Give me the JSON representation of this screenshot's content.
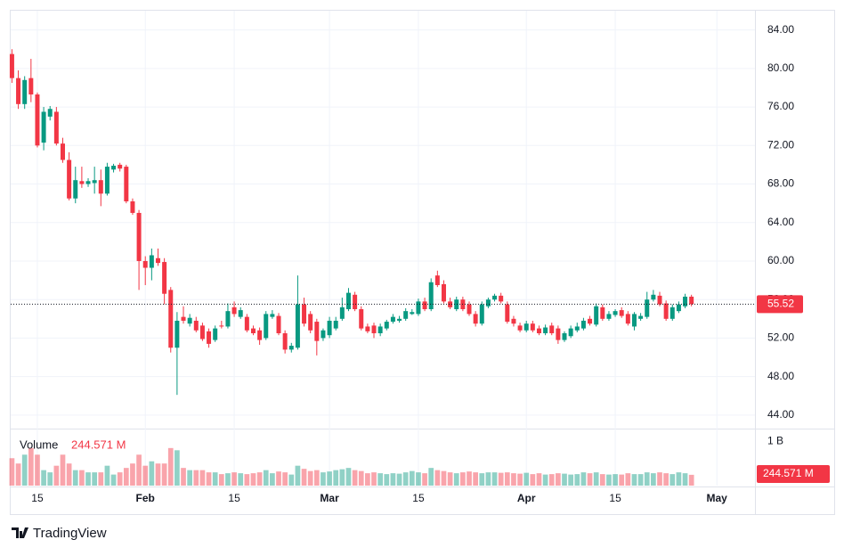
{
  "chart_data": {
    "type": "candlestick",
    "xlim": [
      -0.2,
      117
    ],
    "xticks": [
      {
        "value": 4,
        "label": "15"
      },
      {
        "value": 21,
        "label": "Feb"
      },
      {
        "value": 35,
        "label": "15"
      },
      {
        "value": 50,
        "label": "Mar"
      },
      {
        "value": 64,
        "label": "15"
      },
      {
        "value": 81,
        "label": "Apr"
      },
      {
        "value": 95,
        "label": "15"
      },
      {
        "value": 111,
        "label": "May"
      }
    ],
    "ylim": [
      42.6,
      86
    ],
    "yticks": [
      {
        "value": 44,
        "label": "44.00"
      },
      {
        "value": 48,
        "label": "48.00"
      },
      {
        "value": 52,
        "label": "52.00"
      },
      {
        "value": 56,
        "label": "56.00"
      },
      {
        "value": 60,
        "label": "60.00"
      },
      {
        "value": 64,
        "label": "64.00"
      },
      {
        "value": 68,
        "label": "68.00"
      },
      {
        "value": 72,
        "label": "72.00"
      },
      {
        "value": 76,
        "label": "76.00"
      },
      {
        "value": 80,
        "label": "80.00"
      },
      {
        "value": 84,
        "label": "84.00"
      }
    ],
    "up_color": "#089981",
    "down_color": "#f23645",
    "open": [
      81.5,
      79,
      76.3,
      79,
      77.3,
      72.3,
      75,
      75.5,
      72.2,
      70.5,
      66.5,
      68.3,
      68,
      68.1,
      68.4,
      67,
      69.5,
      70,
      69.8,
      66.2,
      65,
      60,
      59.3,
      60.3,
      59.9,
      57,
      51,
      54.2,
      53.5,
      53.8,
      53.3,
      52.7,
      51.8,
      53.3,
      53.2,
      55.2,
      54.2,
      54.2,
      53,
      52.8,
      52,
      54.2,
      54.3,
      52.5,
      50.8,
      51,
      55.5,
      54.5,
      53.7,
      52,
      52.3,
      53,
      54,
      55,
      56.5,
      55,
      53.2,
      53.3,
      52.5,
      53,
      53.7,
      53.8,
      54,
      54.5,
      54.5,
      55.8,
      55,
      58.5,
      57.6,
      55.8,
      55,
      56,
      55.5,
      54.5,
      53.5,
      55.3,
      56,
      56.4,
      55.5,
      54,
      53.3,
      52.8,
      53.5,
      53,
      52.5,
      53.3,
      53,
      51.8,
      52.2,
      52.8,
      53,
      54,
      53.4,
      55.2,
      54,
      54.4,
      54.9,
      54.5,
      53.2,
      54,
      54.2,
      56,
      56.4,
      55.6,
      54,
      54.8,
      55.3,
      56.3
    ],
    "high": [
      82,
      79.8,
      79.2,
      81,
      77.5,
      76,
      76.1,
      76,
      72.8,
      71.3,
      69.8,
      69.8,
      68.6,
      69.8,
      69.5,
      70.2,
      70.1,
      70.2,
      70,
      66.5,
      65.3,
      60.5,
      61.3,
      61.3,
      60.3,
      57.3,
      54.7,
      55.3,
      54.5,
      54.2,
      53.6,
      53,
      53.3,
      53.8,
      55.6,
      55.8,
      55.2,
      54.5,
      53.3,
      53.1,
      54.8,
      54.9,
      54.6,
      52.8,
      51.5,
      58.5,
      56.2,
      54.8,
      54,
      53,
      54.2,
      54.2,
      56.2,
      57.2,
      56.8,
      55.3,
      53.5,
      53.6,
      53.5,
      53.9,
      54.5,
      54.3,
      55.1,
      55,
      56.1,
      56.2,
      58.2,
      59,
      58,
      56.2,
      56.3,
      56.3,
      55.8,
      54.8,
      55.8,
      56.2,
      56.6,
      56.7,
      55.8,
      54.3,
      53.6,
      53.8,
      53.8,
      53.3,
      53.4,
      53.6,
      53.3,
      52.7,
      53.3,
      53.6,
      54.1,
      54.3,
      55.6,
      55.5,
      54.8,
      55,
      55.2,
      54.8,
      54.7,
      54.6,
      56.8,
      57,
      56.8,
      55.9,
      55.5,
      55.8,
      56.6,
      56.5
    ],
    "low": [
      78.5,
      75.8,
      75.8,
      76.5,
      71.8,
      71.5,
      74.6,
      72,
      70.2,
      66.3,
      66,
      67.6,
      67.7,
      67,
      65.7,
      66.8,
      69.2,
      69.3,
      66,
      64.8,
      57,
      57.5,
      58,
      59.5,
      55.5,
      50.5,
      46.1,
      53.5,
      53.2,
      52.6,
      51.7,
      51,
      51.6,
      53,
      53,
      54.2,
      54,
      52.6,
      52.3,
      51.3,
      51.8,
      54,
      52.3,
      50.4,
      50.5,
      50.8,
      53.2,
      52.5,
      50.2,
      51.7,
      52,
      52.8,
      53.8,
      54.8,
      54.8,
      52.8,
      52.5,
      52,
      52.2,
      52.8,
      53.5,
      53.6,
      53.8,
      54.4,
      54.3,
      54.8,
      54.8,
      57.3,
      55.6,
      55,
      54.8,
      54.8,
      54.3,
      53.2,
      53.3,
      55.1,
      55.8,
      55.6,
      53.5,
      53.2,
      52.6,
      52.6,
      52.6,
      52.3,
      52.3,
      52.3,
      51.4,
      51.6,
      52,
      52.6,
      52.8,
      53.3,
      53.2,
      53.8,
      53.8,
      54.2,
      54.1,
      53.3,
      52.8,
      53.8,
      54,
      55.8,
      55.3,
      53.8,
      53.8,
      54.6,
      55.1,
      55.3
    ],
    "close": [
      79,
      76.3,
      78.8,
      77.3,
      72,
      75.5,
      75.8,
      72.2,
      70.5,
      66.5,
      68.4,
      68,
      68.3,
      68.4,
      67,
      69.8,
      69.9,
      69.6,
      66.2,
      65,
      60,
      59.3,
      60.6,
      59.8,
      56.6,
      51,
      53.8,
      53.8,
      54.1,
      52.8,
      51.9,
      51.4,
      53,
      53.2,
      54.8,
      54.5,
      54.9,
      52.8,
      52.5,
      51.8,
      54.5,
      54.5,
      52.5,
      50.8,
      51.2,
      55.5,
      53.5,
      52.8,
      51.7,
      52.8,
      53.8,
      53.8,
      55.2,
      56.7,
      55,
      53,
      52.7,
      52.5,
      53.2,
      53.7,
      54.2,
      54,
      54.8,
      54.7,
      55.8,
      55,
      57.8,
      57.5,
      55.8,
      55.2,
      56,
      55,
      54.5,
      53.5,
      55.5,
      56,
      56.4,
      55.8,
      53.7,
      53.5,
      52.8,
      53.5,
      52.8,
      52.5,
      53.1,
      52.5,
      51.8,
      52.5,
      53,
      53.2,
      53.8,
      53.5,
      55.3,
      54,
      54.5,
      54.8,
      54.3,
      53.5,
      54.5,
      54.3,
      56,
      56.5,
      55.5,
      54,
      55.2,
      55.5,
      56.3,
      55.52
    ],
    "volume_lim": [
      0,
      1250
    ],
    "volume_ticks": [
      {
        "value": 1000,
        "label": "1 B"
      }
    ],
    "volume_title": "Volume",
    "volume": [
      620,
      500,
      700,
      850,
      700,
      350,
      300,
      450,
      700,
      500,
      350,
      350,
      300,
      300,
      300,
      450,
      250,
      300,
      400,
      500,
      700,
      450,
      550,
      500,
      500,
      850,
      800,
      400,
      350,
      350,
      350,
      300,
      300,
      260,
      280,
      300,
      280,
      260,
      280,
      300,
      350,
      280,
      320,
      300,
      250,
      450,
      380,
      330,
      350,
      300,
      320,
      350,
      370,
      400,
      350,
      330,
      280,
      300,
      280,
      260,
      280,
      270,
      300,
      330,
      300,
      280,
      400,
      350,
      330,
      300,
      280,
      300,
      320,
      300,
      280,
      300,
      300,
      290,
      300,
      280,
      270,
      290,
      260,
      280,
      250,
      260,
      280,
      270,
      250,
      260,
      300,
      280,
      300,
      260,
      250,
      260,
      250,
      280,
      260,
      260,
      300,
      280,
      300,
      280,
      260,
      300,
      280,
      244.571
    ],
    "volume_value_labels": {
      "107": "244.571 M"
    },
    "last_price_line": true,
    "brand": "TradingView"
  }
}
